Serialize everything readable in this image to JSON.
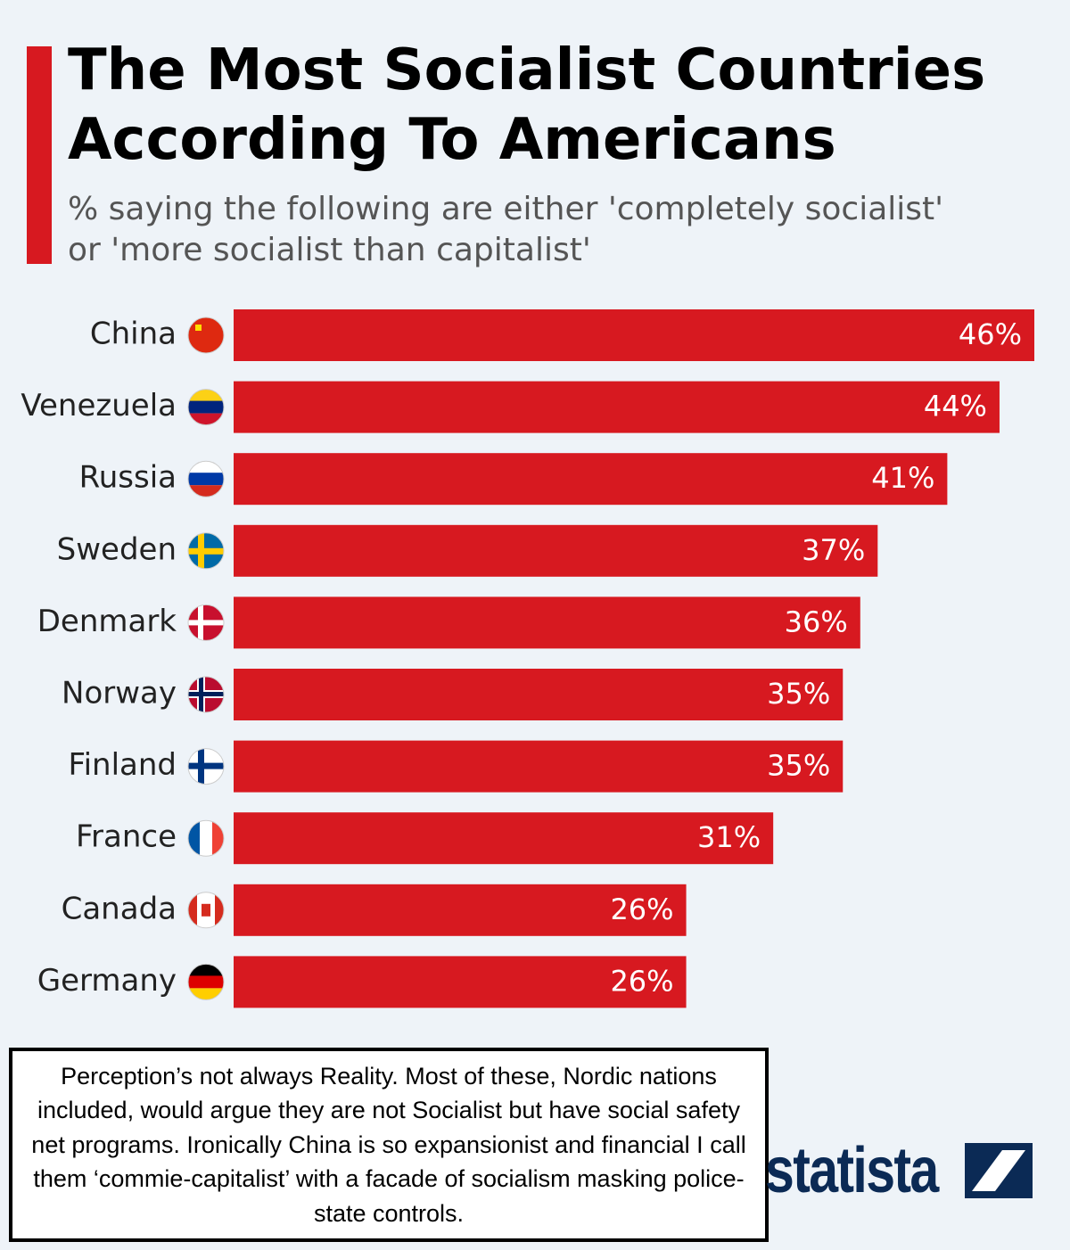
{
  "chart_data": {
    "type": "bar",
    "orientation": "horizontal",
    "title": "The Most Socialist Countries According To Americans",
    "subtitle": "% saying the following are either 'completely socialist' or 'more socialist than capitalist'",
    "categories": [
      "China",
      "Venezuela",
      "Russia",
      "Sweden",
      "Denmark",
      "Norway",
      "Finland",
      "France",
      "Canada",
      "Germany"
    ],
    "values": [
      46,
      44,
      41,
      37,
      36,
      35,
      35,
      31,
      26,
      26
    ],
    "value_labels": [
      "46%",
      "44%",
      "41%",
      "37%",
      "36%",
      "35%",
      "35%",
      "31%",
      "26%",
      "26%"
    ],
    "color": "#d71920",
    "annotation": "Perception’s not always Reality. Most of these, Nordic nations included, would argue they are not Socialist but have social safety net programs. Ironically China is so expansionist and financial I call them ‘commie-capitalist’ with a facade of socialism masking police-state controls.",
    "logo": "statista"
  }
}
